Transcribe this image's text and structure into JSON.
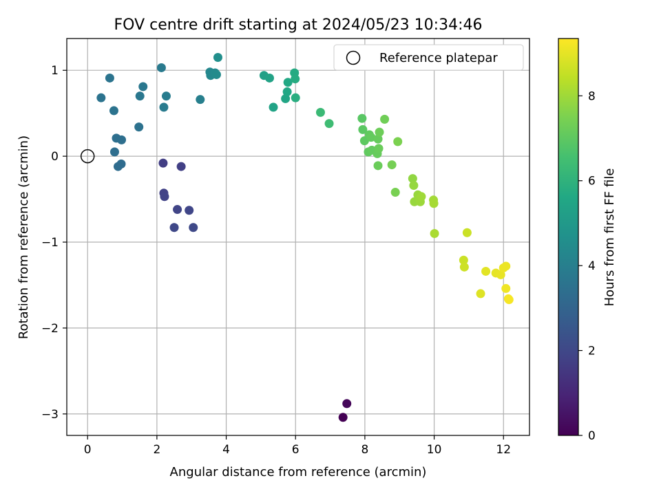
{
  "chart_data": {
    "type": "scatter",
    "title": "FOV centre drift starting at 2024/05/23 10:34:46",
    "xlabel": "Angular distance from reference (arcmin)",
    "ylabel": "Rotation from reference (arcmin)",
    "xlim": [
      -0.6,
      12.75
    ],
    "ylim": [
      -3.25,
      1.37
    ],
    "xticks": [
      0,
      2,
      4,
      6,
      8,
      10,
      12
    ],
    "yticks": [
      -3,
      -2,
      -1,
      0,
      1
    ],
    "ytick_labels": [
      "−3",
      "−2",
      "−1",
      "0",
      "1"
    ],
    "grid": true,
    "legend": {
      "position": "top-right",
      "label": "Reference platepar"
    },
    "reference": {
      "x": 0,
      "y": 0
    },
    "colorbar": {
      "label": "Hours from first FF file",
      "range": [
        0,
        9.35
      ],
      "ticks": [
        0,
        2,
        4,
        6,
        8
      ],
      "colormap": "viridis"
    },
    "points": [
      {
        "x": 7.37,
        "y": -3.04,
        "h": 0.0
      },
      {
        "x": 7.48,
        "y": -2.88,
        "h": 0.15
      },
      {
        "x": 2.18,
        "y": -0.08,
        "h": 1.7
      },
      {
        "x": 2.7,
        "y": -0.12,
        "h": 1.75
      },
      {
        "x": 2.2,
        "y": -0.43,
        "h": 1.8
      },
      {
        "x": 2.22,
        "y": -0.47,
        "h": 1.85
      },
      {
        "x": 2.59,
        "y": -0.62,
        "h": 1.9
      },
      {
        "x": 2.93,
        "y": -0.63,
        "h": 1.95
      },
      {
        "x": 2.5,
        "y": -0.83,
        "h": 2.0
      },
      {
        "x": 3.05,
        "y": -0.83,
        "h": 2.05
      },
      {
        "x": 0.88,
        "y": -0.12,
        "h": 3.3
      },
      {
        "x": 0.97,
        "y": -0.09,
        "h": 3.3
      },
      {
        "x": 0.78,
        "y": 0.05,
        "h": 3.35
      },
      {
        "x": 0.83,
        "y": 0.21,
        "h": 3.4
      },
      {
        "x": 0.98,
        "y": 0.19,
        "h": 3.4
      },
      {
        "x": 1.48,
        "y": 0.34,
        "h": 3.5
      },
      {
        "x": 0.39,
        "y": 0.68,
        "h": 3.55
      },
      {
        "x": 0.76,
        "y": 0.53,
        "h": 3.55
      },
      {
        "x": 0.64,
        "y": 0.91,
        "h": 3.6
      },
      {
        "x": 1.51,
        "y": 0.7,
        "h": 3.7
      },
      {
        "x": 1.6,
        "y": 0.81,
        "h": 3.7
      },
      {
        "x": 2.13,
        "y": 1.03,
        "h": 3.8
      },
      {
        "x": 2.2,
        "y": 0.57,
        "h": 3.85
      },
      {
        "x": 2.27,
        "y": 0.7,
        "h": 3.9
      },
      {
        "x": 3.25,
        "y": 0.66,
        "h": 4.0
      },
      {
        "x": 3.53,
        "y": 0.98,
        "h": 4.3
      },
      {
        "x": 3.55,
        "y": 0.94,
        "h": 4.35
      },
      {
        "x": 3.68,
        "y": 0.97,
        "h": 4.4
      },
      {
        "x": 3.72,
        "y": 0.95,
        "h": 4.45
      },
      {
        "x": 3.76,
        "y": 1.15,
        "h": 4.6
      },
      {
        "x": 5.09,
        "y": 0.94,
        "h": 5.3
      },
      {
        "x": 5.25,
        "y": 0.91,
        "h": 5.35
      },
      {
        "x": 5.36,
        "y": 0.57,
        "h": 5.4
      },
      {
        "x": 5.71,
        "y": 0.67,
        "h": 5.5
      },
      {
        "x": 5.76,
        "y": 0.75,
        "h": 5.55
      },
      {
        "x": 5.78,
        "y": 0.86,
        "h": 5.6
      },
      {
        "x": 5.97,
        "y": 0.97,
        "h": 5.7
      },
      {
        "x": 5.99,
        "y": 0.9,
        "h": 5.75
      },
      {
        "x": 6.0,
        "y": 0.68,
        "h": 5.8
      },
      {
        "x": 6.72,
        "y": 0.51,
        "h": 6.3
      },
      {
        "x": 6.97,
        "y": 0.38,
        "h": 6.4
      },
      {
        "x": 7.92,
        "y": 0.44,
        "h": 6.9
      },
      {
        "x": 7.94,
        "y": 0.31,
        "h": 6.95
      },
      {
        "x": 7.99,
        "y": 0.18,
        "h": 7.0
      },
      {
        "x": 8.1,
        "y": 0.05,
        "h": 7.05
      },
      {
        "x": 8.13,
        "y": 0.25,
        "h": 7.05
      },
      {
        "x": 8.18,
        "y": 0.22,
        "h": 7.1
      },
      {
        "x": 8.2,
        "y": 0.07,
        "h": 7.1
      },
      {
        "x": 8.36,
        "y": 0.03,
        "h": 7.15
      },
      {
        "x": 8.38,
        "y": 0.2,
        "h": 7.15
      },
      {
        "x": 8.38,
        "y": -0.11,
        "h": 7.2
      },
      {
        "x": 8.4,
        "y": 0.09,
        "h": 7.2
      },
      {
        "x": 8.42,
        "y": 0.28,
        "h": 7.25
      },
      {
        "x": 8.57,
        "y": 0.43,
        "h": 7.3
      },
      {
        "x": 8.78,
        "y": -0.1,
        "h": 7.4
      },
      {
        "x": 8.88,
        "y": -0.42,
        "h": 7.45
      },
      {
        "x": 8.95,
        "y": 0.17,
        "h": 7.5
      },
      {
        "x": 9.38,
        "y": -0.26,
        "h": 7.8
      },
      {
        "x": 9.41,
        "y": -0.34,
        "h": 7.85
      },
      {
        "x": 9.43,
        "y": -0.53,
        "h": 7.9
      },
      {
        "x": 9.53,
        "y": -0.45,
        "h": 7.9
      },
      {
        "x": 9.58,
        "y": -0.49,
        "h": 7.95
      },
      {
        "x": 9.6,
        "y": -0.53,
        "h": 7.95
      },
      {
        "x": 9.63,
        "y": -0.47,
        "h": 8.0
      },
      {
        "x": 9.98,
        "y": -0.51,
        "h": 8.05
      },
      {
        "x": 9.99,
        "y": -0.55,
        "h": 8.1
      },
      {
        "x": 10.01,
        "y": -0.9,
        "h": 8.15
      },
      {
        "x": 10.85,
        "y": -1.21,
        "h": 8.6
      },
      {
        "x": 10.87,
        "y": -1.29,
        "h": 8.65
      },
      {
        "x": 10.95,
        "y": -0.89,
        "h": 8.6
      },
      {
        "x": 11.34,
        "y": -1.6,
        "h": 8.9
      },
      {
        "x": 11.49,
        "y": -1.34,
        "h": 8.95
      },
      {
        "x": 11.78,
        "y": -1.36,
        "h": 9.0
      },
      {
        "x": 11.92,
        "y": -1.38,
        "h": 9.05
      },
      {
        "x": 12.0,
        "y": -1.3,
        "h": 9.1
      },
      {
        "x": 12.07,
        "y": -1.28,
        "h": 9.1
      },
      {
        "x": 12.07,
        "y": -1.54,
        "h": 9.15
      },
      {
        "x": 12.14,
        "y": -1.66,
        "h": 9.2
      },
      {
        "x": 12.16,
        "y": -1.67,
        "h": 9.25
      }
    ]
  }
}
